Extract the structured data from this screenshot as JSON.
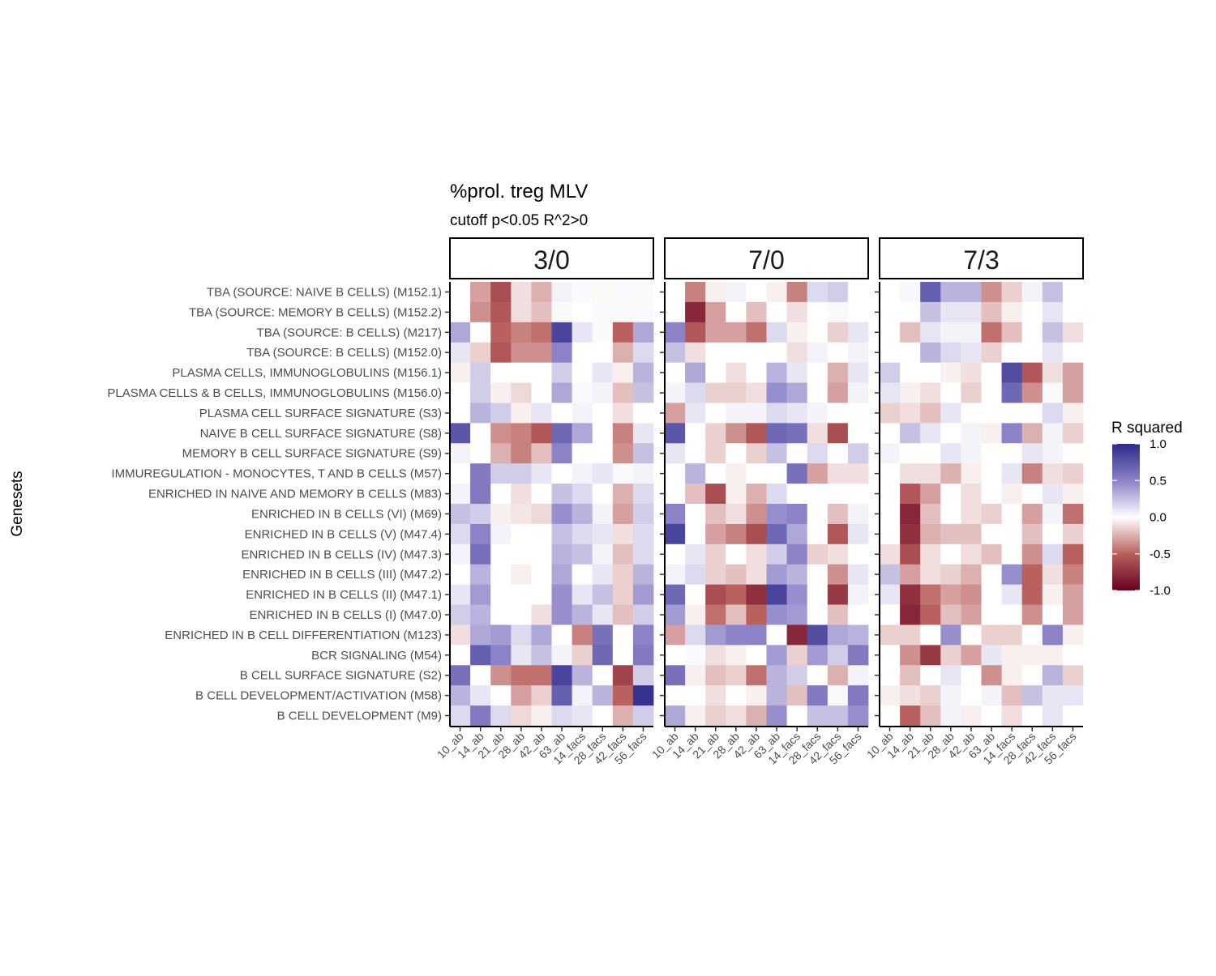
{
  "chart_data": {
    "type": "heatmap",
    "title": "%prol. treg MLV",
    "subtitle": "cutoff p<0.05 R^2>0",
    "ylabel": "Genesets",
    "xlabel": "",
    "legend": {
      "title": "R squared",
      "placement": "right",
      "ticks": [
        "1.0",
        "0.5",
        "0.0",
        "-0.5",
        "-1.0"
      ],
      "range": [
        -1,
        1
      ],
      "colors": {
        "low": "#67001f",
        "mid": "#ffffff",
        "high": "#2d2a8a"
      }
    },
    "genesets": [
      "TBA (SOURCE: NAIVE B CELLS) (M152.1)",
      "TBA (SOURCE: MEMORY B CELLS) (M152.2)",
      "TBA (SOURCE: B CELLS) (M217)",
      "TBA (SOURCE: B CELLS) (M152.0)",
      "PLASMA CELLS, IMMUNOGLOBULINS (M156.1)",
      "PLASMA CELLS & B CELLS, IMMUNOGLOBULINS (M156.0)",
      "PLASMA CELL SURFACE SIGNATURE (S3)",
      "NAIVE B CELL SURFACE SIGNATURE (S8)",
      "MEMORY B CELL SURFACE SIGNATURE (S9)",
      "IMMUREGULATION - MONOCYTES, T AND B CELLS (M57)",
      "ENRICHED IN NAIVE AND MEMORY B CELLS (M83)",
      "ENRICHED IN B CELLS (VI) (M69)",
      "ENRICHED IN B CELLS (V) (M47.4)",
      "ENRICHED IN B CELLS (IV) (M47.3)",
      "ENRICHED IN B CELLS (III) (M47.2)",
      "ENRICHED IN B CELLS (II) (M47.1)",
      "ENRICHED IN B CELLS (I) (M47.0)",
      "ENRICHED IN B CELL DIFFERENTIATION (M123)",
      "BCR SIGNALING (M54)",
      "B CELL SURFACE SIGNATURE (S2)",
      "B CELL DEVELOPMENT/ACTIVATION (M58)",
      "B CELL DEVELOPMENT (M9)"
    ],
    "columns": [
      "10_ab",
      "14_ab",
      "21_ab",
      "28_ab",
      "42_ab",
      "63_ab",
      "14_facs",
      "28_facs",
      "42_facs",
      "56_facs"
    ],
    "panels": [
      {
        "name": "3/0",
        "values": [
          [
            0,
            -0.3,
            -0.6,
            -0.1,
            -0.25,
            0.05,
            0.02,
            -0.02,
            0.02,
            0.02
          ],
          [
            0,
            -0.35,
            -0.55,
            -0.1,
            -0.2,
            0.02,
            0,
            0.02,
            0.02,
            0.02
          ],
          [
            0.35,
            0,
            -0.5,
            -0.4,
            -0.45,
            0.85,
            0.1,
            0.02,
            -0.5,
            0.35
          ],
          [
            0.1,
            -0.15,
            -0.55,
            -0.35,
            -0.35,
            0.5,
            0,
            0,
            -0.25,
            0.15
          ],
          [
            -0.05,
            0.2,
            0,
            0,
            0,
            0.2,
            0,
            0.1,
            -0.05,
            0.3
          ],
          [
            0,
            0.2,
            -0.05,
            -0.12,
            0,
            0.35,
            0.02,
            0.05,
            -0.2,
            0.25
          ],
          [
            0,
            0.3,
            0.2,
            -0.05,
            0.1,
            0,
            0.05,
            0,
            -0.1,
            0
          ],
          [
            0.75,
            0,
            -0.35,
            -0.4,
            -0.55,
            0.65,
            0.35,
            0,
            -0.4,
            0.1
          ],
          [
            0.05,
            0,
            -0.25,
            -0.4,
            -0.2,
            0.5,
            0,
            0,
            -0.35,
            0.25
          ],
          [
            0,
            0.55,
            0.2,
            0.2,
            0.1,
            0,
            0.05,
            0.1,
            0.02,
            0.05
          ],
          [
            0.05,
            0.55,
            0,
            -0.1,
            0,
            0.25,
            0.15,
            0,
            -0.25,
            0.15
          ],
          [
            0.25,
            0.2,
            -0.05,
            -0.08,
            -0.12,
            0.45,
            0.3,
            0.05,
            -0.3,
            0.2
          ],
          [
            0.15,
            0.5,
            0.05,
            0,
            0,
            0.25,
            0.15,
            0.1,
            -0.1,
            0.15
          ],
          [
            0.05,
            0.6,
            0,
            0,
            0,
            0.3,
            0.25,
            0.05,
            -0.2,
            0.15
          ],
          [
            0,
            0.3,
            0,
            -0.05,
            0,
            0.35,
            0,
            0.1,
            -0.15,
            0.3
          ],
          [
            0.1,
            0.4,
            0,
            0,
            0,
            0.45,
            0.1,
            0.25,
            -0.15,
            0.4
          ],
          [
            0.2,
            0.3,
            0,
            0,
            -0.1,
            0.45,
            0.3,
            0.1,
            -0.2,
            0.2
          ],
          [
            -0.1,
            0.35,
            0.4,
            0.15,
            0.35,
            0,
            -0.4,
            0.6,
            0,
            0.5
          ],
          [
            0,
            0.7,
            0.5,
            0.1,
            0.25,
            0.05,
            -0.15,
            0.65,
            0,
            0.55
          ],
          [
            0.6,
            0,
            -0.35,
            -0.45,
            -0.45,
            0.85,
            0.3,
            0,
            -0.65,
            0.2
          ],
          [
            0.3,
            0.1,
            0,
            -0.3,
            -0.15,
            0.7,
            0.05,
            0.3,
            -0.5,
            0.95
          ],
          [
            0.15,
            0.55,
            0.15,
            -0.12,
            -0.05,
            0.15,
            0.1,
            0,
            -0.25,
            0.2
          ]
        ]
      },
      {
        "name": "7/0",
        "values": [
          [
            0,
            -0.4,
            -0.05,
            0.05,
            0,
            -0.05,
            -0.4,
            0.15,
            0.2,
            0
          ],
          [
            0,
            -0.8,
            -0.3,
            0,
            -0.2,
            0,
            -0.1,
            0,
            0.02,
            0
          ],
          [
            0.5,
            -0.55,
            -0.3,
            -0.3,
            -0.45,
            0.15,
            -0.05,
            0,
            -0.15,
            0.1
          ],
          [
            0.25,
            -0.1,
            0,
            0,
            0,
            0,
            -0.1,
            0.05,
            0,
            0.05
          ],
          [
            0,
            0.35,
            0,
            -0.1,
            0,
            0.3,
            0.1,
            0,
            -0.25,
            0.1
          ],
          [
            0.05,
            0.15,
            -0.15,
            -0.15,
            -0.1,
            0.45,
            0.35,
            0,
            -0.3,
            0.05
          ],
          [
            -0.3,
            0.1,
            0,
            0.05,
            0.05,
            0.15,
            0.1,
            0.05,
            0,
            0
          ],
          [
            0.75,
            0,
            -0.15,
            -0.35,
            -0.55,
            0.65,
            0.6,
            -0.1,
            -0.6,
            0
          ],
          [
            0.1,
            0,
            -0.15,
            0,
            -0.15,
            0.25,
            0,
            0.15,
            0,
            0.2
          ],
          [
            0,
            0.3,
            0,
            -0.05,
            0,
            0,
            0.6,
            -0.3,
            -0.1,
            -0.1
          ],
          [
            0,
            -0.2,
            -0.6,
            -0.05,
            -0.25,
            0.15,
            0,
            0,
            0,
            0
          ],
          [
            0.5,
            0,
            -0.2,
            -0.1,
            -0.35,
            0.45,
            0.5,
            0,
            -0.2,
            0.05
          ],
          [
            0.85,
            0,
            -0.3,
            -0.4,
            -0.6,
            0.65,
            0.35,
            0,
            -0.55,
            0.1
          ],
          [
            0,
            0.1,
            -0.15,
            0,
            -0.1,
            0.2,
            0.5,
            -0.15,
            -0.1,
            0
          ],
          [
            0.05,
            0.15,
            -0.15,
            -0.2,
            -0.1,
            0.4,
            0.3,
            0,
            -0.35,
            0.1
          ],
          [
            0.65,
            0,
            -0.6,
            -0.5,
            -0.75,
            0.85,
            0.45,
            0,
            -0.7,
            0.05
          ],
          [
            0.4,
            -0.05,
            -0.45,
            -0.2,
            -0.5,
            0.45,
            0.4,
            0,
            -0.2,
            0
          ],
          [
            -0.3,
            0.15,
            0.4,
            0.5,
            0.5,
            0,
            -0.8,
            0.8,
            0.35,
            0.3
          ],
          [
            0,
            0.02,
            -0.1,
            -0.05,
            0,
            0.4,
            -0.15,
            0.4,
            0.2,
            0.55
          ],
          [
            0.6,
            -0.05,
            -0.2,
            -0.15,
            -0.45,
            0.3,
            0.2,
            0,
            -0.25,
            0.05
          ],
          [
            0,
            0,
            -0.1,
            0,
            -0.05,
            0.3,
            -0.2,
            0.55,
            0.02,
            0.55
          ],
          [
            0.35,
            -0.05,
            -0.15,
            -0.1,
            -0.25,
            0.45,
            0,
            0.25,
            0.25,
            0.45
          ]
        ]
      },
      {
        "name": "7/3",
        "values": [
          [
            0,
            0.03,
            0.7,
            0.3,
            0.3,
            -0.35,
            -0.15,
            0.05,
            0.25,
            0
          ],
          [
            0,
            0,
            0.25,
            0.1,
            0.1,
            -0.2,
            -0.05,
            0,
            0.1,
            0
          ],
          [
            0,
            -0.2,
            0.1,
            0.05,
            0.05,
            -0.45,
            -0.2,
            0,
            0.25,
            -0.1
          ],
          [
            0,
            0,
            0.3,
            0.15,
            0.1,
            -0.15,
            0,
            0,
            0.1,
            0
          ],
          [
            0.2,
            0,
            0,
            -0.05,
            -0.1,
            0,
            0.8,
            -0.55,
            -0.1,
            -0.3
          ],
          [
            0.1,
            -0.05,
            -0.1,
            0,
            -0.15,
            0,
            0.65,
            -0.35,
            0.02,
            -0.3
          ],
          [
            -0.15,
            -0.1,
            -0.2,
            0.1,
            0,
            0,
            0,
            0,
            0.15,
            -0.05
          ],
          [
            0,
            0.25,
            0.1,
            0,
            0.05,
            -0.05,
            0.5,
            -0.25,
            0.05,
            -0.15
          ],
          [
            0.05,
            0,
            0,
            0.1,
            0.05,
            0,
            0,
            0.1,
            0.05,
            0
          ],
          [
            0,
            -0.1,
            -0.1,
            -0.25,
            -0.05,
            0,
            0.1,
            -0.4,
            -0.1,
            -0.15
          ],
          [
            0,
            -0.55,
            -0.3,
            0,
            -0.1,
            0,
            -0.05,
            0,
            0.1,
            -0.05
          ],
          [
            0,
            -0.8,
            -0.2,
            0,
            -0.1,
            -0.15,
            0,
            -0.3,
            0.05,
            -0.45
          ],
          [
            0,
            -0.75,
            -0.25,
            -0.2,
            -0.2,
            0,
            0,
            -0.2,
            0,
            -0.15
          ],
          [
            -0.1,
            -0.6,
            -0.1,
            0,
            -0.1,
            -0.2,
            0,
            -0.35,
            0.15,
            -0.5
          ],
          [
            0.25,
            -0.3,
            -0.1,
            -0.15,
            -0.25,
            0,
            0.45,
            -0.5,
            -0.1,
            -0.4
          ],
          [
            0.1,
            -0.75,
            -0.45,
            -0.3,
            -0.35,
            0,
            0.1,
            -0.5,
            -0.05,
            -0.3
          ],
          [
            0,
            -0.8,
            -0.5,
            -0.2,
            -0.3,
            0,
            0,
            -0.35,
            0,
            -0.3
          ],
          [
            -0.15,
            -0.15,
            0,
            0.45,
            0,
            -0.15,
            -0.15,
            0,
            0.5,
            -0.05
          ],
          [
            0,
            -0.35,
            -0.7,
            -0.15,
            -0.3,
            0.1,
            -0.05,
            -0.05,
            -0.05,
            0
          ],
          [
            0,
            -0.2,
            0,
            0.1,
            0,
            -0.35,
            -0.05,
            0,
            0.3,
            -0.15
          ],
          [
            -0.05,
            -0.1,
            -0.15,
            0.05,
            0,
            0.05,
            -0.2,
            0.25,
            0.1,
            0.1
          ],
          [
            0,
            -0.5,
            -0.2,
            0.05,
            -0.05,
            0,
            -0.1,
            0,
            0.1,
            0
          ]
        ]
      }
    ]
  }
}
